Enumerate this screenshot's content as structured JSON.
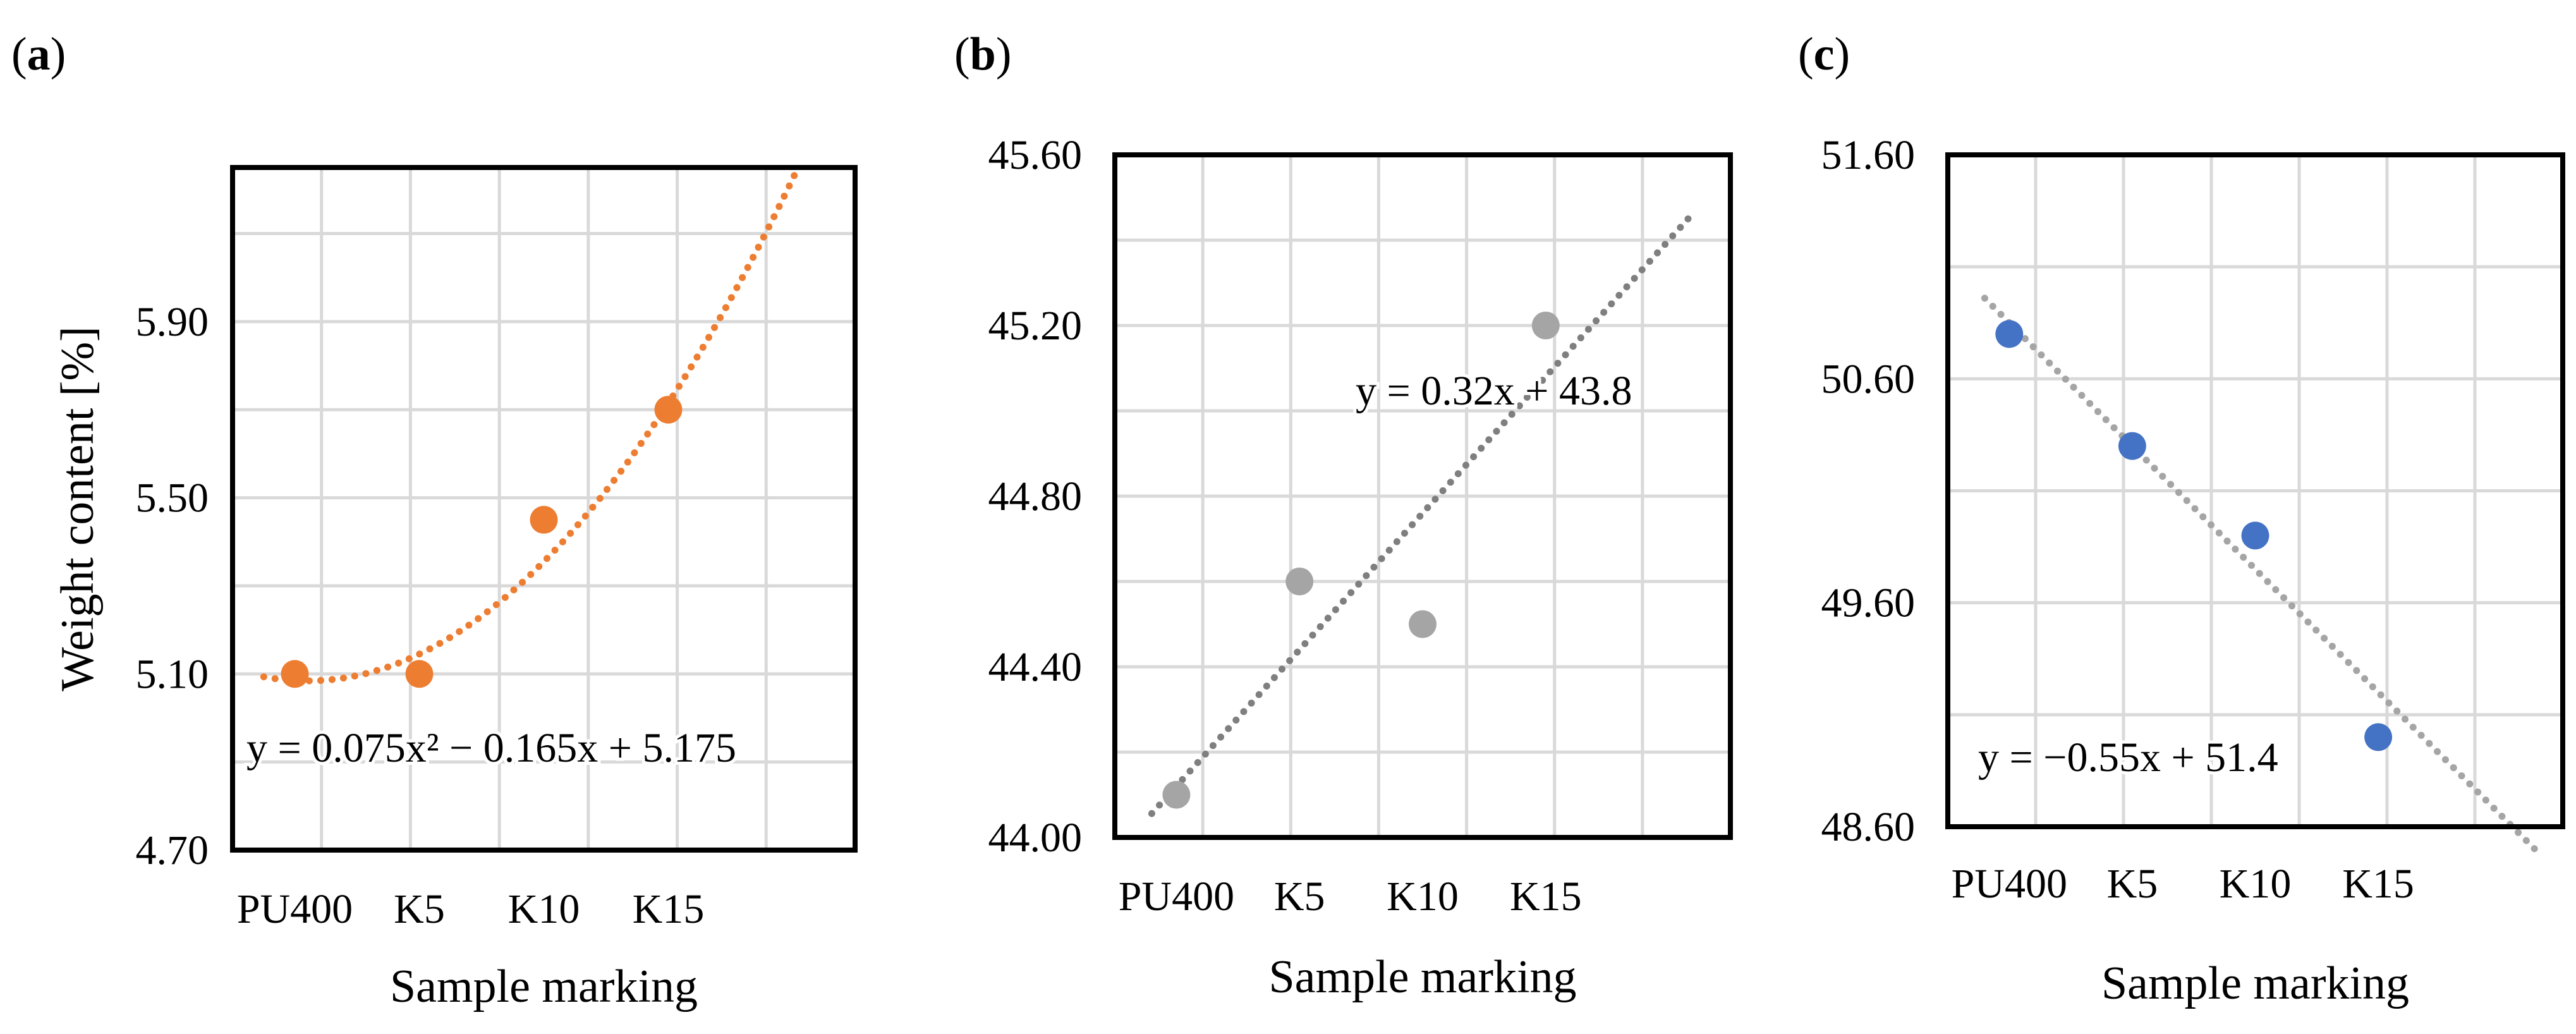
{
  "chart_data": [
    {
      "type": "scatter",
      "panel_label": "a",
      "categories": [
        "PU400",
        "K5",
        "K10",
        "K15"
      ],
      "x": [
        1,
        2,
        3,
        4
      ],
      "values": [
        5.1,
        5.1,
        5.45,
        5.7
      ],
      "ylabel": "Weight content [%]",
      "xlabel": "Sample marking",
      "ylim": [
        4.7,
        6.25
      ],
      "xlim": [
        0.5,
        5.5
      ],
      "yticks": [
        "4.70",
        "5.10",
        "5.50",
        "5.90"
      ],
      "grid": true,
      "marker_color": "#ED7D31",
      "trendline": {
        "kind": "polynomial",
        "coefficients": [
          0.075,
          -0.165,
          5.175
        ],
        "x_range": [
          0.75,
          5.25
        ],
        "color": "#ED7D31",
        "style": "dotted",
        "equation": "y = 0.075x² − 0.165x + 5.175"
      }
    },
    {
      "type": "scatter",
      "panel_label": "b",
      "categories": [
        "PU400",
        "K5",
        "K10",
        "K15"
      ],
      "x": [
        1,
        2,
        3,
        4
      ],
      "values": [
        44.1,
        44.6,
        44.5,
        45.2
      ],
      "ylabel": "",
      "xlabel": "Sample marking",
      "ylim": [
        44.0,
        45.6
      ],
      "xlim": [
        0.5,
        5.5
      ],
      "yticks": [
        "44.00",
        "44.40",
        "44.80",
        "45.20",
        "45.60"
      ],
      "grid": true,
      "marker_color": "#A5A5A5",
      "trendline": {
        "kind": "linear",
        "coefficients": [
          0.32,
          43.8
        ],
        "x_range": [
          0.8,
          5.2
        ],
        "color": "#7F7F7F",
        "style": "dotted",
        "equation": "y = 0.32x + 43.8"
      }
    },
    {
      "type": "scatter",
      "panel_label": "c",
      "categories": [
        "PU400",
        "K5",
        "K10",
        "K15"
      ],
      "x": [
        1,
        2,
        3,
        4
      ],
      "values": [
        50.8,
        50.3,
        49.9,
        49.0
      ],
      "ylabel": "",
      "xlabel": "Sample marking",
      "ylim": [
        48.6,
        51.6
      ],
      "xlim": [
        0.5,
        5.5
      ],
      "yticks": [
        "48.60",
        "49.60",
        "50.60",
        "51.60"
      ],
      "grid": true,
      "marker_color": "#4472C4",
      "trendline": {
        "kind": "linear",
        "coefficients": [
          -0.55,
          51.4
        ],
        "x_range": [
          0.8,
          5.3
        ],
        "color": "#A5A5A5",
        "style": "dotted",
        "equation": "y = −0.55x + 51.4"
      }
    }
  ]
}
